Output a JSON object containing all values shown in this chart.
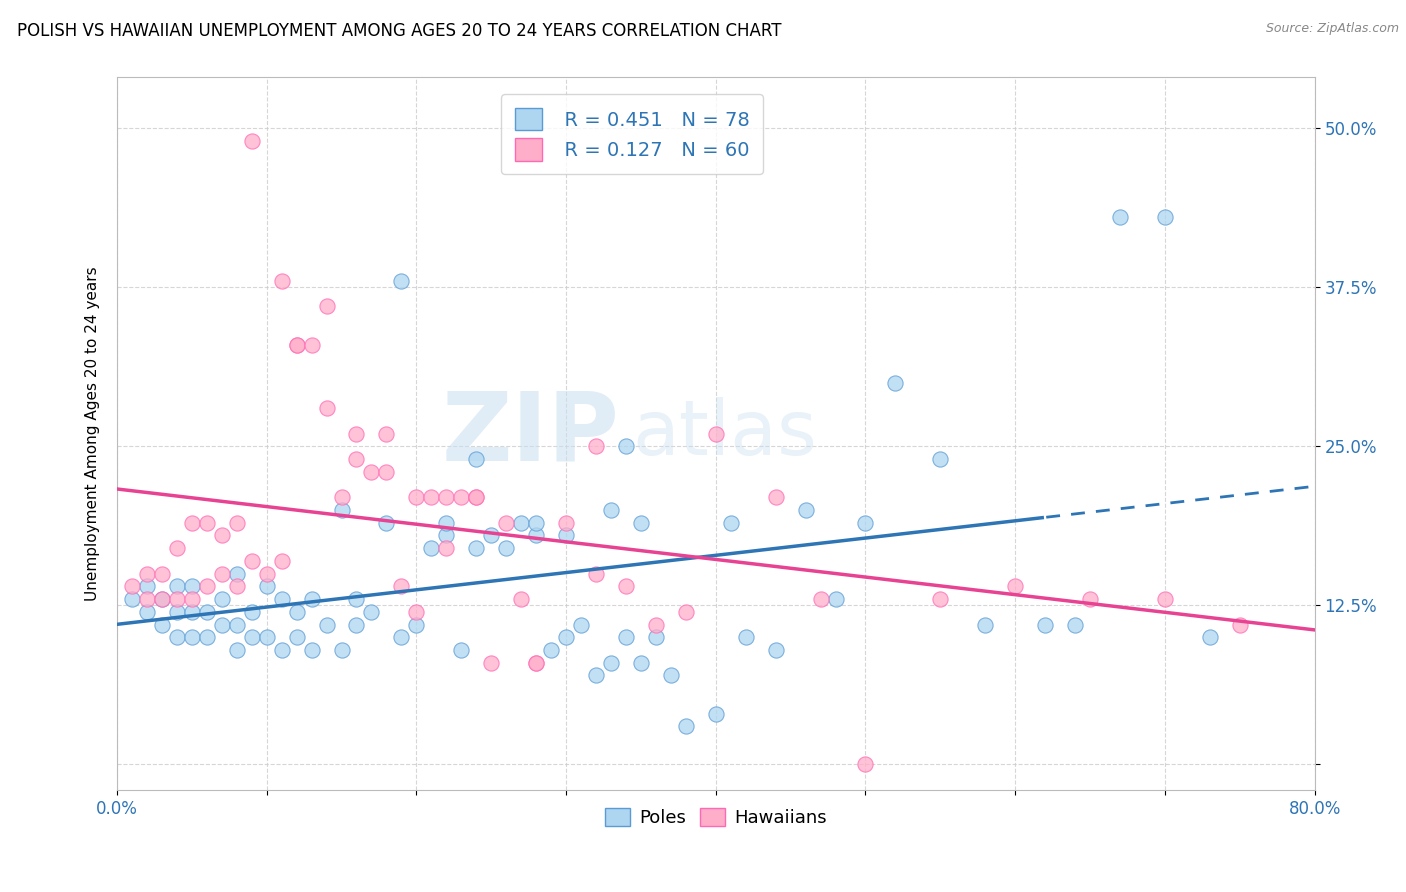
{
  "title": "POLISH VS HAWAIIAN UNEMPLOYMENT AMONG AGES 20 TO 24 YEARS CORRELATION CHART",
  "source": "Source: ZipAtlas.com",
  "ylabel": "Unemployment Among Ages 20 to 24 years",
  "xlim": [
    0.0,
    0.8
  ],
  "ylim": [
    -0.02,
    0.54
  ],
  "xticks": [
    0.0,
    0.1,
    0.2,
    0.3,
    0.4,
    0.5,
    0.6,
    0.7,
    0.8
  ],
  "xticklabels": [
    "0.0%",
    "",
    "",
    "",
    "",
    "",
    "",
    "",
    "80.0%"
  ],
  "yticks": [
    0.0,
    0.125,
    0.25,
    0.375,
    0.5
  ],
  "yticklabels": [
    "",
    "12.5%",
    "25.0%",
    "37.5%",
    "50.0%"
  ],
  "legend_r_poles": "R = 0.451",
  "legend_n_poles": "N = 78",
  "legend_r_hawaiians": "R = 0.127",
  "legend_n_hawaiians": "N = 60",
  "poles_color": "#AED6F1",
  "poles_edge_color": "#5B9BD5",
  "hawaiians_color": "#FFAEC9",
  "hawaiians_edge_color": "#FF69B4",
  "trend_poles_color": "#2E75B6",
  "trend_hawaiians_color": "#E84393",
  "background_color": "#FFFFFF",
  "grid_color": "#CCCCCC",
  "watermark_zip": "ZIP",
  "watermark_atlas": "atlas",
  "title_fontsize": 12,
  "axis_label_fontsize": 11,
  "tick_fontsize": 12,
  "poles_x": [
    0.01,
    0.02,
    0.02,
    0.03,
    0.03,
    0.04,
    0.04,
    0.04,
    0.05,
    0.05,
    0.05,
    0.06,
    0.06,
    0.07,
    0.07,
    0.08,
    0.08,
    0.08,
    0.09,
    0.09,
    0.1,
    0.1,
    0.11,
    0.11,
    0.12,
    0.12,
    0.13,
    0.13,
    0.14,
    0.15,
    0.15,
    0.16,
    0.16,
    0.17,
    0.18,
    0.19,
    0.2,
    0.21,
    0.22,
    0.23,
    0.24,
    0.25,
    0.26,
    0.27,
    0.28,
    0.29,
    0.3,
    0.31,
    0.32,
    0.33,
    0.33,
    0.34,
    0.35,
    0.36,
    0.37,
    0.38,
    0.4,
    0.42,
    0.44,
    0.46,
    0.48,
    0.5,
    0.52,
    0.55,
    0.58,
    0.62,
    0.64,
    0.67,
    0.7,
    0.73,
    0.24,
    0.34,
    0.19,
    0.22,
    0.35,
    0.41,
    0.3,
    0.28
  ],
  "poles_y": [
    0.13,
    0.12,
    0.14,
    0.11,
    0.13,
    0.1,
    0.12,
    0.14,
    0.1,
    0.12,
    0.14,
    0.1,
    0.12,
    0.11,
    0.13,
    0.09,
    0.11,
    0.15,
    0.1,
    0.12,
    0.1,
    0.14,
    0.09,
    0.13,
    0.1,
    0.12,
    0.09,
    0.13,
    0.11,
    0.09,
    0.2,
    0.11,
    0.13,
    0.12,
    0.19,
    0.1,
    0.11,
    0.17,
    0.18,
    0.09,
    0.17,
    0.18,
    0.17,
    0.19,
    0.18,
    0.09,
    0.1,
    0.11,
    0.07,
    0.08,
    0.2,
    0.1,
    0.08,
    0.1,
    0.07,
    0.03,
    0.04,
    0.1,
    0.09,
    0.2,
    0.13,
    0.19,
    0.3,
    0.24,
    0.11,
    0.11,
    0.11,
    0.43,
    0.43,
    0.1,
    0.24,
    0.25,
    0.38,
    0.19,
    0.19,
    0.19,
    0.18,
    0.19
  ],
  "hawaiians_x": [
    0.01,
    0.02,
    0.02,
    0.03,
    0.03,
    0.04,
    0.04,
    0.05,
    0.05,
    0.06,
    0.06,
    0.07,
    0.07,
    0.08,
    0.08,
    0.09,
    0.1,
    0.11,
    0.12,
    0.12,
    0.13,
    0.14,
    0.15,
    0.16,
    0.17,
    0.18,
    0.19,
    0.2,
    0.21,
    0.22,
    0.23,
    0.24,
    0.25,
    0.26,
    0.27,
    0.28,
    0.3,
    0.32,
    0.34,
    0.36,
    0.38,
    0.4,
    0.44,
    0.47,
    0.5,
    0.55,
    0.6,
    0.65,
    0.7,
    0.75,
    0.09,
    0.11,
    0.14,
    0.18,
    0.22,
    0.24,
    0.28,
    0.32,
    0.16,
    0.2
  ],
  "hawaiians_y": [
    0.14,
    0.13,
    0.15,
    0.13,
    0.15,
    0.13,
    0.17,
    0.13,
    0.19,
    0.14,
    0.19,
    0.15,
    0.18,
    0.14,
    0.19,
    0.16,
    0.15,
    0.16,
    0.33,
    0.33,
    0.33,
    0.36,
    0.21,
    0.26,
    0.23,
    0.23,
    0.14,
    0.21,
    0.21,
    0.21,
    0.21,
    0.21,
    0.08,
    0.19,
    0.13,
    0.08,
    0.19,
    0.15,
    0.14,
    0.11,
    0.12,
    0.26,
    0.21,
    0.13,
    0.0,
    0.13,
    0.14,
    0.13,
    0.13,
    0.11,
    0.49,
    0.38,
    0.28,
    0.26,
    0.17,
    0.21,
    0.08,
    0.25,
    0.24,
    0.12
  ]
}
